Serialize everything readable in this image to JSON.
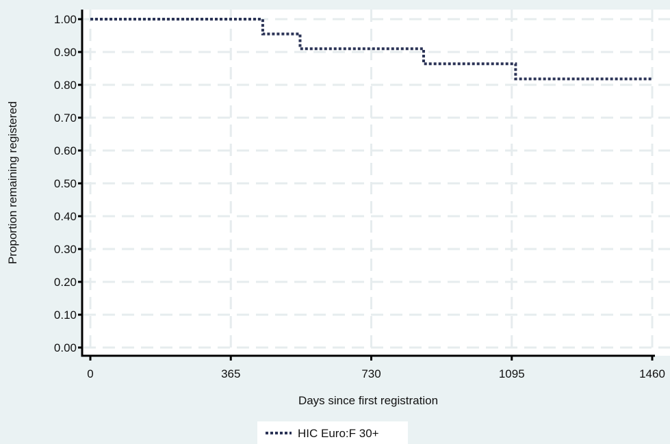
{
  "chart_data": {
    "type": "line",
    "xlabel": "Days since first registration",
    "ylabel": "Proportion remaining registered",
    "xlim": [
      0,
      1460
    ],
    "ylim": [
      0,
      1
    ],
    "xticks": [
      0,
      365,
      730,
      1095,
      1460
    ],
    "xtick_labels": [
      "0",
      "365",
      "730",
      "1095",
      "1460"
    ],
    "yticks": [
      0,
      0.1,
      0.2,
      0.3,
      0.4,
      0.5,
      0.6,
      0.7,
      0.8,
      0.9,
      1.0
    ],
    "ytick_labels": [
      "0.00",
      "0.10",
      "0.20",
      "0.30",
      "0.40",
      "0.50",
      "0.60",
      "0.70",
      "0.80",
      "0.90",
      "1.00"
    ],
    "grid": true,
    "legend_position": "bottom-center",
    "series": [
      {
        "name": "HIC Euro:F 30+",
        "style": "step",
        "dash": "dotted",
        "color": "#2b3356",
        "x": [
          0,
          448,
          545,
          866,
          1105,
          1460
        ],
        "y": [
          1.0,
          0.955,
          0.91,
          0.864,
          0.818,
          0.818
        ]
      }
    ]
  },
  "colors": {
    "background": "#eaf2f3",
    "plot_area": "#ffffff",
    "grid": "#e6ecee",
    "axis": "#000000",
    "series": "#2b3356"
  }
}
